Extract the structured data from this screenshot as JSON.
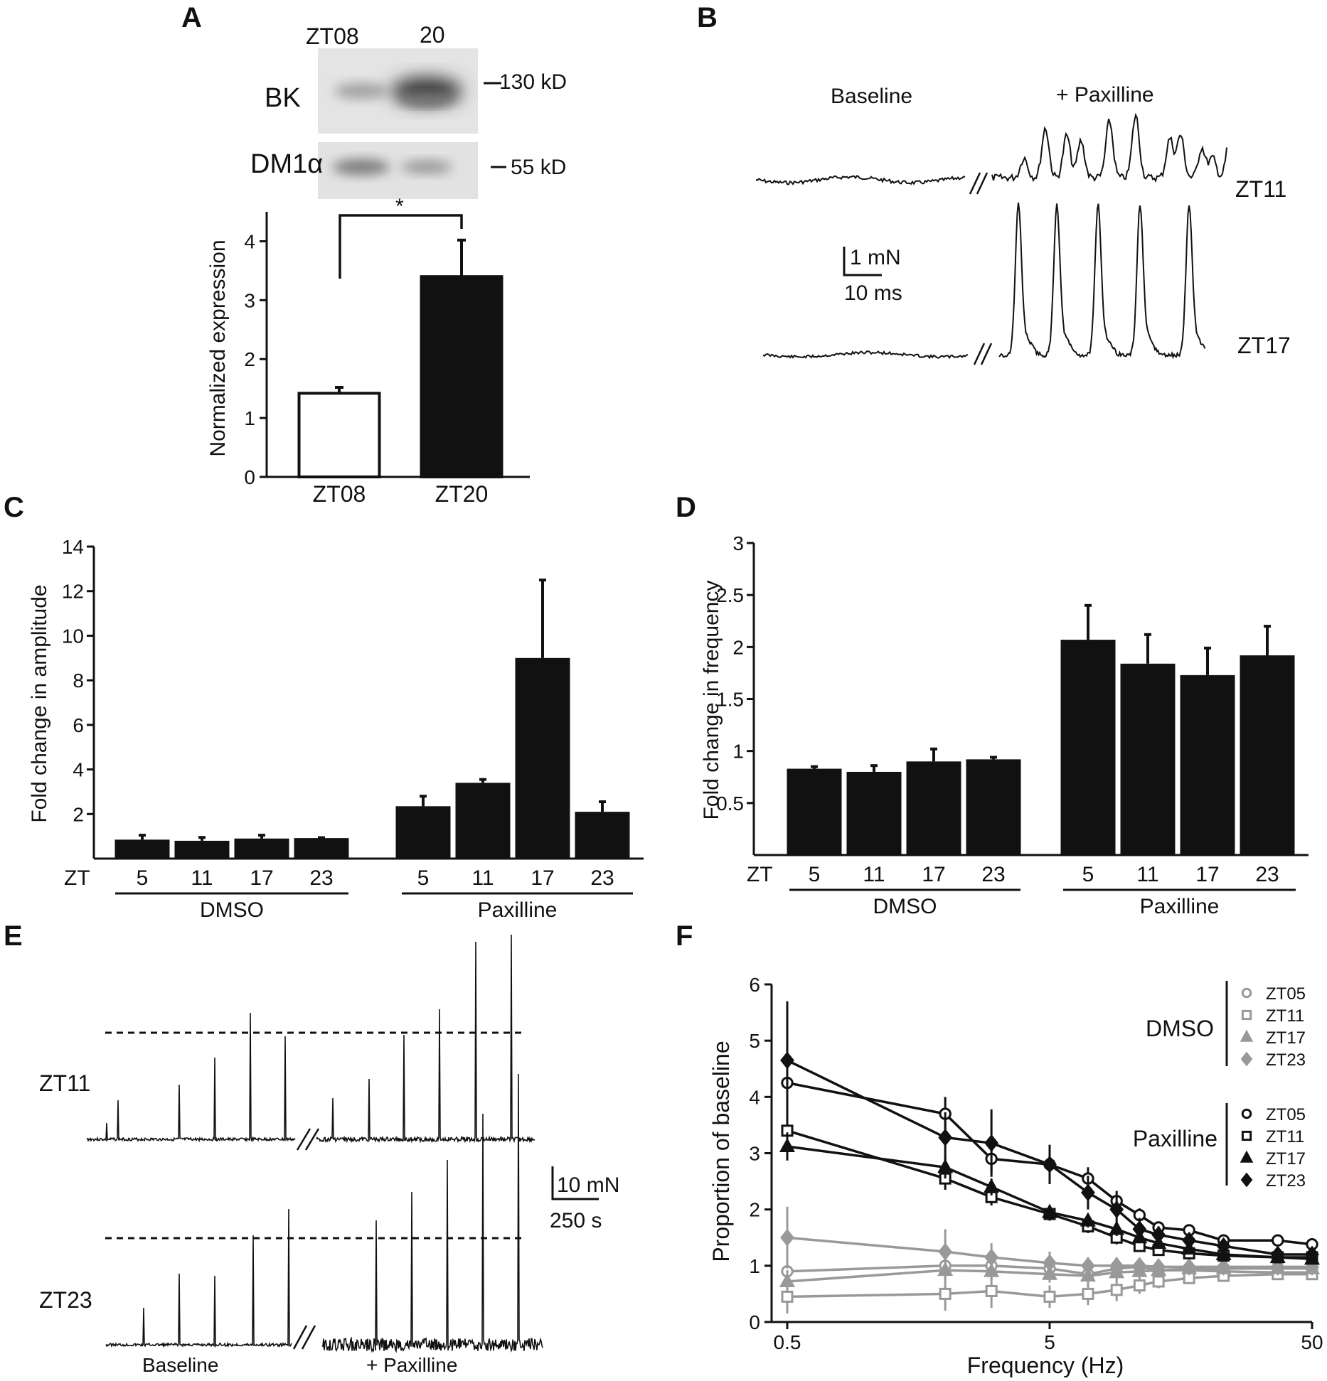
{
  "panel_labels": {
    "a": "A",
    "b": "B",
    "c": "C",
    "d": "D",
    "e": "E",
    "f": "F"
  },
  "panel_a": {
    "blot": {
      "lane_labels": [
        "ZT08",
        "20"
      ],
      "rows": [
        {
          "label": "BK",
          "marker": "130 kD"
        },
        {
          "label": "DM1α",
          "marker": "55 kD"
        }
      ]
    },
    "significance": "*"
  },
  "panel_b": {
    "baseline_label": "Baseline",
    "treatment_label": "+ Paxilline",
    "traces": [
      "ZT11",
      "ZT17"
    ],
    "scale_force": "1 mN",
    "scale_time": "10 ms"
  },
  "panel_e": {
    "traces": [
      "ZT11",
      "ZT23"
    ],
    "baseline_label": "Baseline",
    "treatment_label": "+ Paxilline",
    "scale_force": "10 mN",
    "scale_time": "250 s"
  },
  "colors": {
    "black": "#111111",
    "gray": "#999999",
    "white": "#ffffff"
  },
  "chart_data": [
    {
      "id": "A",
      "type": "bar",
      "categories": [
        "ZT08",
        "ZT20"
      ],
      "values": [
        1.42,
        3.4
      ],
      "errors": [
        0.1,
        0.62
      ],
      "fills": [
        "white",
        "black"
      ],
      "ylabel": "Normalized expression",
      "ylim": [
        0,
        4.5
      ],
      "yticks": [
        0,
        1,
        2,
        3,
        4
      ]
    },
    {
      "id": "C",
      "type": "bar",
      "axis_prefix": "ZT",
      "groups": [
        {
          "name": "DMSO",
          "categories": [
            "5",
            "11",
            "17",
            "23"
          ],
          "values": [
            0.85,
            0.8,
            0.9,
            0.92
          ],
          "errors": [
            0.2,
            0.15,
            0.15,
            0.02
          ]
        },
        {
          "name": "Paxilline",
          "categories": [
            "5",
            "11",
            "17",
            "23"
          ],
          "values": [
            2.35,
            3.4,
            9.0,
            2.1
          ],
          "errors": [
            0.45,
            0.15,
            3.5,
            0.45
          ]
        }
      ],
      "ylabel": "Fold change in amplitude",
      "ylim": [
        0,
        14
      ],
      "yticks": [
        2,
        4,
        6,
        8,
        10,
        12,
        14
      ]
    },
    {
      "id": "D",
      "type": "bar",
      "axis_prefix": "ZT",
      "groups": [
        {
          "name": "DMSO",
          "categories": [
            "5",
            "11",
            "17",
            "23"
          ],
          "values": [
            0.83,
            0.8,
            0.9,
            0.92
          ],
          "errors": [
            0.02,
            0.06,
            0.12,
            0.02
          ]
        },
        {
          "name": "Paxilline",
          "categories": [
            "5",
            "11",
            "17",
            "23"
          ],
          "values": [
            2.07,
            1.84,
            1.73,
            1.92
          ],
          "errors": [
            0.33,
            0.28,
            0.26,
            0.28
          ]
        }
      ],
      "ylabel": "Fold change in frequency",
      "ylim": [
        0,
        3
      ],
      "yticks": [
        "0.5",
        "1",
        "1.5",
        "2",
        "2.5",
        "3"
      ]
    },
    {
      "id": "F",
      "type": "line",
      "xscale": "log",
      "x": [
        0.5,
        2,
        3,
        5,
        7,
        9,
        11,
        13,
        17,
        23,
        37,
        50
      ],
      "xlim": [
        0.5,
        50
      ],
      "xtick_labels": [
        "0.5",
        "5",
        "50"
      ],
      "ylim": [
        0,
        6
      ],
      "yticks": [
        "0",
        "1",
        "2",
        "3",
        "4",
        "5",
        "6"
      ],
      "xlabel": "Frequency (Hz)",
      "ylabel": "Proportion of baseline",
      "legend_groups": [
        "DMSO",
        "Paxilline"
      ],
      "series": [
        {
          "name": "ZT05",
          "group": "DMSO",
          "marker": "circle-open",
          "color": "gray",
          "values": [
            0.9,
            1.0,
            1.0,
            0.95,
            0.85,
            0.95,
            0.98,
            0.92,
            0.92,
            0.9,
            0.88,
            0.88
          ],
          "errors": [
            0.25,
            0.15,
            0.15,
            0.15,
            0.15,
            0.12,
            0.12,
            0.1,
            0.1,
            0.1,
            0.1,
            0.1
          ]
        },
        {
          "name": "ZT11",
          "group": "DMSO",
          "marker": "square-open",
          "color": "gray",
          "values": [
            0.45,
            0.5,
            0.55,
            0.45,
            0.5,
            0.57,
            0.65,
            0.72,
            0.78,
            0.82,
            0.85,
            0.85
          ],
          "errors": [
            0.3,
            0.3,
            0.3,
            0.2,
            0.2,
            0.2,
            0.15,
            0.12,
            0.1,
            0.1,
            0.1,
            0.1
          ]
        },
        {
          "name": "ZT17",
          "group": "DMSO",
          "marker": "triangle-filled",
          "color": "gray",
          "values": [
            0.72,
            0.92,
            0.9,
            0.85,
            0.82,
            0.88,
            0.9,
            0.92,
            0.95,
            0.95,
            0.95,
            0.95
          ],
          "errors": [
            0.2,
            0.15,
            0.15,
            0.15,
            0.12,
            0.12,
            0.1,
            0.1,
            0.1,
            0.1,
            0.1,
            0.1
          ]
        },
        {
          "name": "ZT23",
          "group": "DMSO",
          "marker": "diamond-filled",
          "color": "gray",
          "values": [
            1.5,
            1.25,
            1.15,
            1.05,
            1.0,
            1.0,
            1.0,
            0.98,
            0.98,
            0.98,
            0.98,
            0.98
          ],
          "errors": [
            0.55,
            0.4,
            0.25,
            0.2,
            0.15,
            0.15,
            0.12,
            0.1,
            0.1,
            0.1,
            0.1,
            0.1
          ]
        },
        {
          "name": "ZT05",
          "group": "Paxilline",
          "marker": "circle-open",
          "color": "black",
          "values": [
            4.25,
            3.7,
            2.9,
            2.8,
            2.55,
            2.15,
            1.9,
            1.68,
            1.63,
            1.45,
            1.45,
            1.38
          ],
          "errors": [
            0.3,
            0.3,
            0.25,
            0.3,
            0.2,
            0.18,
            0.12,
            0.1,
            0.1,
            0.08,
            0.08,
            0.08
          ]
        },
        {
          "name": "ZT11",
          "group": "Paxilline",
          "marker": "square-open",
          "color": "black",
          "values": [
            3.4,
            2.55,
            2.22,
            1.92,
            1.7,
            1.5,
            1.35,
            1.28,
            1.22,
            1.18,
            1.15,
            1.15
          ],
          "errors": [
            0.3,
            0.2,
            0.15,
            0.12,
            0.12,
            0.12,
            0.1,
            0.1,
            0.1,
            0.08,
            0.08,
            0.08
          ]
        },
        {
          "name": "ZT17",
          "group": "Paxilline",
          "marker": "triangle-filled",
          "color": "black",
          "values": [
            3.12,
            2.75,
            2.4,
            1.95,
            1.8,
            1.65,
            1.5,
            1.4,
            1.3,
            1.2,
            1.15,
            1.12
          ],
          "errors": [
            0.25,
            0.2,
            0.15,
            0.12,
            0.12,
            0.12,
            0.1,
            0.1,
            0.1,
            0.08,
            0.08,
            0.08
          ]
        },
        {
          "name": "ZT23",
          "group": "Paxilline",
          "marker": "diamond-filled",
          "color": "black",
          "values": [
            4.65,
            3.28,
            3.18,
            2.8,
            2.3,
            2.0,
            1.65,
            1.55,
            1.45,
            1.35,
            1.2,
            1.2
          ],
          "errors": [
            1.05,
            0.45,
            0.6,
            0.35,
            0.3,
            0.25,
            0.2,
            0.15,
            0.12,
            0.1,
            0.1,
            0.1
          ]
        }
      ]
    }
  ]
}
